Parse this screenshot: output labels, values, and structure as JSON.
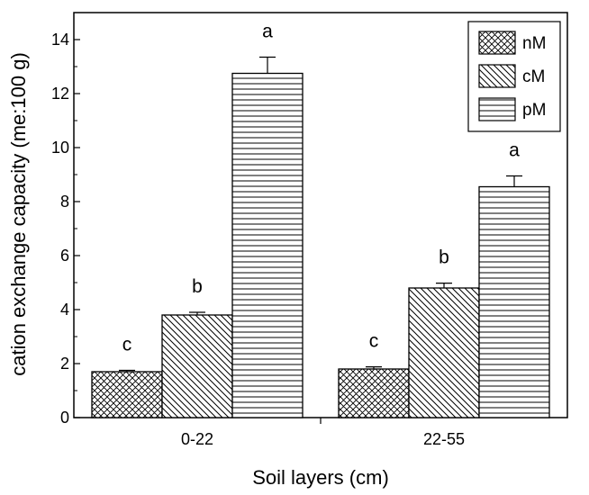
{
  "chart_data": {
    "type": "bar",
    "xlabel": "Soil layers (cm)",
    "ylabel": "cation exchange capacity (me:100 g)",
    "ylim": [
      0,
      15
    ],
    "yticks": [
      0,
      2,
      4,
      6,
      8,
      10,
      12,
      14
    ],
    "categories": [
      "0-22",
      "22-55"
    ],
    "legend_position": "top-right",
    "series": [
      {
        "name": "nM",
        "pattern": "crosshatch",
        "values": [
          1.7,
          1.8
        ],
        "errors": [
          0.05,
          0.08
        ],
        "letters": [
          "c",
          "c"
        ]
      },
      {
        "name": "cM",
        "pattern": "diagonal",
        "values": [
          3.8,
          4.8
        ],
        "errors": [
          0.1,
          0.18
        ],
        "letters": [
          "b",
          "b"
        ]
      },
      {
        "name": "pM",
        "pattern": "horizontal",
        "values": [
          12.75,
          8.55
        ],
        "errors": [
          0.6,
          0.4
        ],
        "letters": [
          "a",
          "a"
        ]
      }
    ],
    "colors": {
      "stroke": "#000000",
      "fill": "#ffffff"
    }
  }
}
